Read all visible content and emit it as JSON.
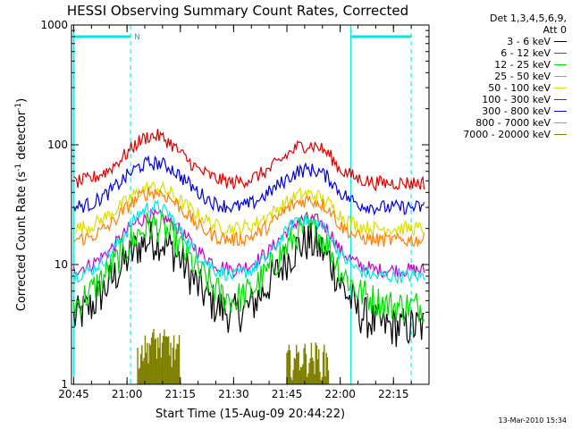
{
  "chart_data": {
    "type": "line",
    "title": "HESSI Observing Summary Count Rates, Corrected",
    "xlabel": "Start Time (15-Aug-09 20:44:22)",
    "ylabel": "Corrected Count Rate (s^-1 detector^-1)",
    "ylabel_parts": {
      "a": "Corrected Count Rate (s",
      "sup1": "-1",
      "b": " detector",
      "sup2": "-1",
      "c": ")"
    },
    "yscale": "log",
    "ylim": [
      1,
      1000
    ],
    "xlim": [
      "20:44:22",
      "22:25:00"
    ],
    "x_tick_labels": [
      "20:45",
      "21:00",
      "21:15",
      "21:30",
      "21:45",
      "22:00",
      "22:15"
    ],
    "y_tick_labels": [
      "1",
      "10",
      "100",
      "1000"
    ],
    "legend_header": [
      "Det 1,3,4,5,6,9,",
      "Att 0"
    ],
    "flag_marker": "N",
    "x_times": [
      "20:45",
      "20:50",
      "20:55",
      "21:00",
      "21:03",
      "21:06",
      "21:09",
      "21:12",
      "21:15",
      "21:20",
      "21:25",
      "21:30",
      "21:35",
      "21:40",
      "21:45",
      "21:48",
      "21:51",
      "21:54",
      "21:57",
      "22:00",
      "22:05",
      "22:10",
      "22:15",
      "22:20",
      "22:24"
    ],
    "series": [
      {
        "name": "3 - 6 keV",
        "color": "#000000",
        "values": [
          3.5,
          4.5,
          7,
          11,
          14,
          16,
          16,
          14,
          11,
          6.5,
          4.5,
          3.8,
          4.5,
          7,
          11,
          14,
          15.5,
          14,
          11,
          7,
          4,
          3.2,
          3.0,
          3.0,
          3.0
        ]
      },
      {
        "name": "6 - 12 keV",
        "color": "#cc00cc",
        "values": [
          9,
          10,
          13,
          19,
          23,
          25,
          25,
          23,
          19,
          13,
          10,
          9,
          10,
          13,
          19,
          23,
          24,
          23,
          19,
          13,
          10,
          9,
          9,
          9,
          9
        ]
      },
      {
        "name": "12 - 25 keV",
        "color": "#00dd00",
        "values": [
          4.5,
          6,
          9,
          14,
          18,
          21,
          21,
          18,
          14,
          9,
          6,
          5,
          6,
          9,
          14,
          18,
          20,
          18,
          14,
          9,
          6,
          5,
          4.5,
          4.5,
          4.5
        ]
      },
      {
        "name": "25 - 50 keV",
        "color": "#00e5e5",
        "values": [
          8,
          9,
          12,
          19,
          26,
          30,
          30,
          26,
          19,
          12,
          9,
          8,
          9,
          12,
          19,
          25,
          23,
          22,
          18,
          12,
          9,
          8,
          8,
          8,
          8
        ]
      },
      {
        "name": "50 - 100 keV",
        "color": "#dddd00",
        "values": [
          20,
          21,
          26,
          34,
          40,
          44,
          44,
          40,
          34,
          26,
          21,
          20,
          21,
          26,
          33,
          38,
          39,
          37,
          32,
          26,
          21,
          20,
          20,
          20,
          20
        ]
      },
      {
        "name": "100 - 300 keV",
        "color": "#dd0000",
        "values": [
          48,
          52,
          62,
          85,
          105,
          118,
          118,
          105,
          85,
          62,
          52,
          48,
          52,
          62,
          82,
          96,
          100,
          96,
          82,
          62,
          52,
          48,
          48,
          48,
          48
        ]
      },
      {
        "name": "300 - 800 keV",
        "color": "#0000dd",
        "values": [
          30,
          32,
          40,
          55,
          65,
          70,
          70,
          65,
          55,
          40,
          32,
          30,
          32,
          40,
          52,
          60,
          62,
          60,
          52,
          40,
          32,
          30,
          30,
          30,
          30
        ]
      },
      {
        "name": "800 - 7000 keV",
        "color": "#ff7f00",
        "values": [
          16,
          17,
          21,
          30,
          36,
          40,
          40,
          36,
          30,
          21,
          17,
          16,
          17,
          21,
          29,
          33,
          35,
          33,
          29,
          21,
          17,
          16,
          16,
          16,
          16
        ]
      },
      {
        "name": "7000 - 20000 keV",
        "color": "#808000",
        "values": [
          null,
          null,
          null,
          null,
          2.2,
          2.5,
          2.4,
          2.2,
          null,
          null,
          null,
          null,
          null,
          null,
          1.8,
          1.9,
          1.9,
          1.8,
          null,
          null,
          null,
          null,
          null,
          null,
          null
        ]
      }
    ],
    "vertical_markers": [
      "20:45",
      "21:01",
      "22:03",
      "22:20"
    ],
    "grid": false,
    "legend": "right"
  },
  "footer": {
    "timestamp": "13-Mar-2010 15:34"
  }
}
